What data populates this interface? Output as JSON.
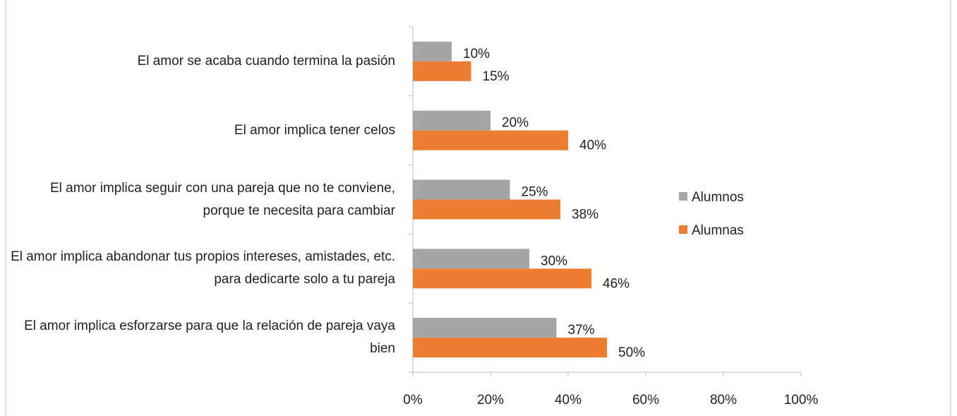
{
  "chart_data": {
    "type": "bar",
    "orientation": "horizontal",
    "categories": [
      "El amor se acaba cuando termina la pasión",
      "El amor implica tener celos",
      "El amor implica seguir con una pareja que no te conviene, porque te necesita para cambiar",
      "El amor implica abandonar tus propios intereses, amistades, etc. para dedicarte solo a tu pareja",
      "El amor implica esforzarse para que la relación de pareja vaya bien"
    ],
    "series": [
      {
        "name": "Alumnos",
        "color": "#a5a5a5",
        "values": [
          10,
          20,
          25,
          30,
          37
        ],
        "value_labels": [
          "10%",
          "20%",
          "25%",
          "30%",
          "37%"
        ]
      },
      {
        "name": "Alumnas",
        "color": "#ed7d31",
        "values": [
          15,
          40,
          38,
          46,
          50
        ],
        "value_labels": [
          "15%",
          "40%",
          "38%",
          "46%",
          "50%"
        ]
      }
    ],
    "xlim": [
      0,
      100
    ],
    "xticks": [
      {
        "value": 0,
        "label": "0%"
      },
      {
        "value": 20,
        "label": "20%"
      },
      {
        "value": 40,
        "label": "40%"
      },
      {
        "value": 60,
        "label": "60%"
      },
      {
        "value": 80,
        "label": "80%"
      },
      {
        "value": 100,
        "label": "100%"
      }
    ],
    "legend": "right"
  }
}
